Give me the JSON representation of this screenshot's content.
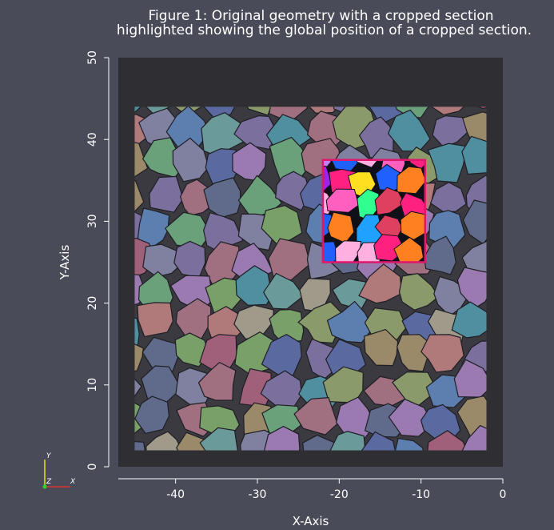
{
  "title": {
    "line1": "Figure 1: Original geometry with a cropped section",
    "line2": "highlighted showing the global position of a cropped section."
  },
  "colors": {
    "background": "#4a4b58",
    "plot_background": "#2e2e33",
    "crop_box": "#e0176c",
    "axis": "#ffffff"
  },
  "triad": {
    "y": "Y",
    "z": "Z",
    "x": "X"
  },
  "chart_data": {
    "type": "heatmap",
    "xlabel": "X-Axis",
    "ylabel": "Y-Axis",
    "xlim": [
      -47,
      0
    ],
    "ylim": [
      0,
      50
    ],
    "xticks": [
      -40,
      -30,
      -20,
      -10,
      0
    ],
    "yticks": [
      0,
      10,
      20,
      30,
      40,
      50
    ],
    "xtick_labels": [
      "-40",
      "-30",
      "-20",
      "-10",
      "0"
    ],
    "ytick_labels": [
      "0",
      "10",
      "20",
      "30",
      "40",
      "50"
    ],
    "grid": false,
    "legend": "none",
    "geometry_extent": {
      "x": [
        -45,
        -2
      ],
      "y": [
        2,
        44
      ]
    },
    "cropped_section": {
      "x": [
        -22,
        -9.5
      ],
      "y": [
        25,
        37.5
      ]
    },
    "grain_colors": [
      "#7b6f9e",
      "#5d7fb0",
      "#8a9a6a",
      "#a07080",
      "#6a9a9a",
      "#9a8a6a",
      "#5a6aa0",
      "#a0607a",
      "#6aa07a",
      "#8080a0",
      "#b07a7a",
      "#4f8fa0",
      "#7aa06a",
      "#9a7ab0",
      "#a09a8a",
      "#606a8a"
    ],
    "crop_colors": [
      "#a020f0",
      "#ff2080",
      "#20a0ff",
      "#ffe020",
      "#30ff90",
      "#ff60c0",
      "#2060ff",
      "#ff8020",
      "#c080ff",
      "#e04060",
      "#40e0d0",
      "#ffb0e0"
    ]
  }
}
